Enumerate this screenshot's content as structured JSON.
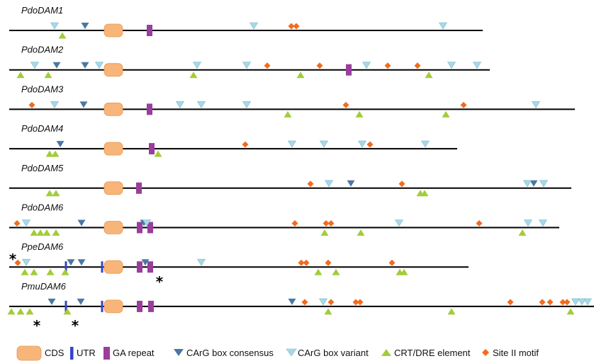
{
  "colors": {
    "line": "#000000",
    "cds_fill": "#f8b57a",
    "cds_stroke": "#e8964f",
    "utr": "#3344cc",
    "ga_repeat": "#9b3d9d",
    "carg_consensus": "#4a78a4",
    "carg_variant": "#a6d9e8",
    "crt_dre": "#a3cc3a",
    "site_ii": "#f26b1d"
  },
  "legend": {
    "cds": "CDS",
    "utr": "UTR",
    "ga_repeat": "GA repeat",
    "carg_consensus": "CArG box consensus",
    "carg_variant": "CArG box variant",
    "crt_dre": "CRT/DRE element",
    "site_ii": "Site II motif"
  },
  "genes": [
    {
      "name": "PdoDAM1",
      "length": 668,
      "cds": [
        147
      ],
      "ga": [
        211
      ],
      "utr": [],
      "consensus": [
        120
      ],
      "variant": [
        77,
        358,
        625
      ],
      "crt": [
        88
      ],
      "site2": [
        411,
        418
      ],
      "stars": []
    },
    {
      "name": "PdoDAM2",
      "length": 678,
      "cds": [
        147
      ],
      "ga": [
        492
      ],
      "utr": [],
      "consensus": [
        80,
        120
      ],
      "variant": [
        49,
        140,
        278,
        348,
        517,
        637,
        673
      ],
      "crt": [
        29,
        68,
        273,
        424,
        605
      ],
      "site2": [
        377,
        451,
        547,
        589
      ],
      "stars": []
    },
    {
      "name": "PdoDAM3",
      "length": 798,
      "cds": [
        147
      ],
      "ga": [
        211
      ],
      "utr": [],
      "consensus": [
        118
      ],
      "variant": [
        77,
        254,
        284,
        348,
        756
      ],
      "crt": [
        406,
        507,
        629
      ],
      "site2": [
        45,
        488,
        654
      ],
      "stars": []
    },
    {
      "name": "PdoDAM4",
      "length": 632,
      "cds": [
        147
      ],
      "ga": [
        214
      ],
      "utr": [],
      "consensus": [
        85
      ],
      "variant": [
        412,
        457,
        511,
        600
      ],
      "crt": [
        70,
        78,
        223
      ],
      "site2": [
        346,
        522
      ],
      "stars": []
    },
    {
      "name": "PdoDAM5",
      "length": 793,
      "cds": [
        147
      ],
      "ga": [
        196
      ],
      "utr": [],
      "consensus": [
        495,
        753
      ],
      "variant": [
        464,
        744,
        767
      ],
      "crt": [
        70,
        79,
        593,
        599
      ],
      "site2": [
        438,
        567
      ],
      "stars": []
    },
    {
      "name": "PdoDAM6",
      "length": 776,
      "cds": [
        147
      ],
      "ga": [
        197,
        212
      ],
      "utr": [],
      "consensus": [
        115,
        203
      ],
      "variant": [
        37,
        207,
        563,
        745,
        766
      ],
      "crt": [
        48,
        57,
        66,
        79,
        458,
        509,
        737
      ],
      "site2": [
        24,
        416,
        460,
        467,
        676
      ],
      "stars": []
    },
    {
      "name": "PpeDAM6",
      "length": 648,
      "cds": [
        147
      ],
      "ga": [
        197,
        212
      ],
      "utr": [
        93,
        144
      ],
      "consensus": [
        100,
        115,
        205
      ],
      "variant": [
        37,
        284
      ],
      "crt": [
        35,
        48,
        71,
        92,
        449,
        474,
        564,
        570
      ],
      "site2": [
        25,
        425,
        432,
        463,
        553
      ],
      "stars": [
        [
          18,
          -11
        ],
        [
          225,
          21
        ]
      ]
    },
    {
      "name": "PmuDAM6",
      "length": 838,
      "cds": [
        147
      ],
      "ga": [
        197,
        213
      ],
      "utr": [
        93,
        144
      ],
      "consensus": [
        73,
        114,
        412
      ],
      "variant": [
        456,
        812,
        821,
        829
      ],
      "crt": [
        16,
        29,
        42,
        95,
        463,
        637,
        805
      ],
      "site2": [
        430,
        467,
        502,
        508,
        720,
        765,
        776,
        794,
        800
      ],
      "stars": [
        [
          52,
          27
        ],
        [
          106,
          27
        ]
      ]
    }
  ]
}
